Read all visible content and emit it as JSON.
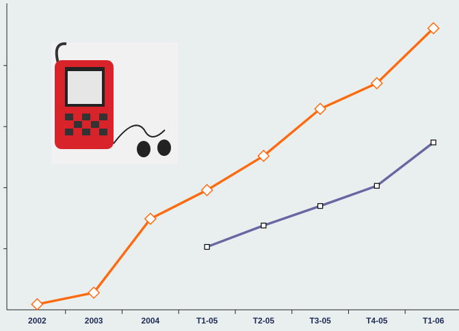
{
  "chart_data": {
    "type": "line",
    "categories": [
      "2002",
      "2003",
      "2004",
      "T1-05",
      "T2-05",
      "T3-05",
      "T4-05",
      "T1-06"
    ],
    "series": [
      {
        "color": "#ff6a0e",
        "marker": "diamond",
        "values": [
          0.09,
          0.28,
          1.49,
          1.96,
          2.52,
          3.29,
          3.71,
          4.61
        ]
      },
      {
        "color": "#6a66a3",
        "marker": "square",
        "values": [
          null,
          null,
          null,
          1.03,
          1.38,
          1.7,
          2.03,
          2.74
        ]
      }
    ],
    "ylim": [
      0,
      5
    ],
    "yticks": [
      1,
      2,
      3,
      4
    ],
    "grid": false
  }
}
